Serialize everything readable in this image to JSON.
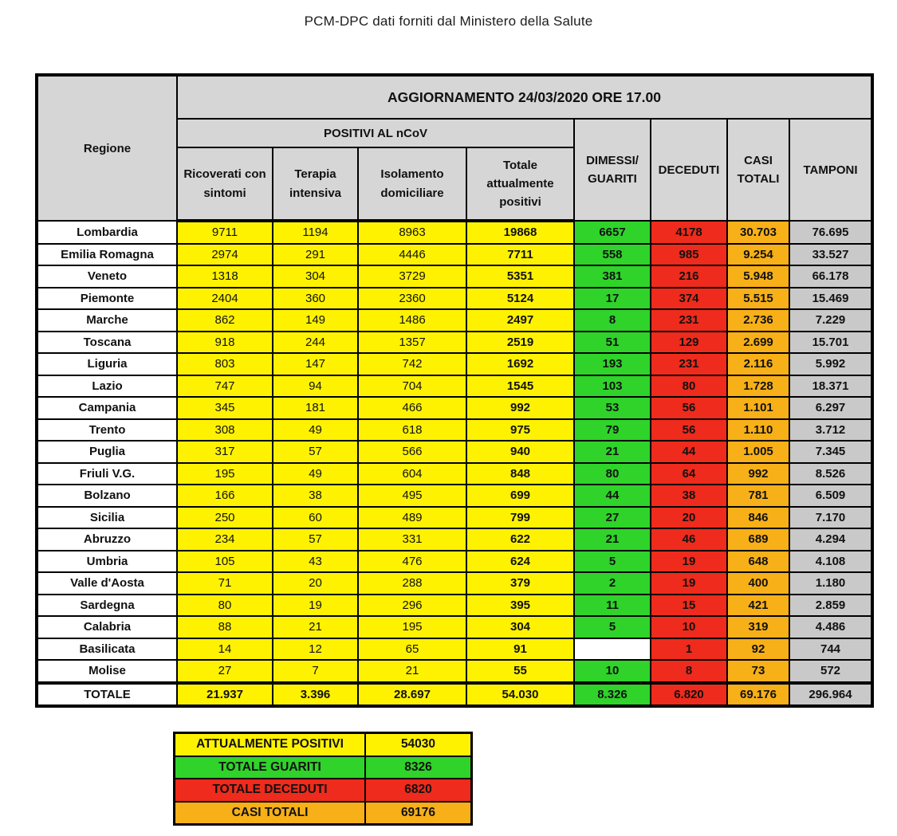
{
  "page_title": "PCM-DPC dati forniti dal Ministero della Salute",
  "colors": {
    "yellow": "#FEF201",
    "green": "#2FD32A",
    "red": "#EE2B1C",
    "orange_data": "#F8B018",
    "orange_header": "#FFB60D",
    "header_gray": "#D6D6D6",
    "tamponi_gray": "#C9C9C9",
    "border": "#000000"
  },
  "chart_data": {
    "type": "table",
    "title": "AGGIORNAMENTO 24/03/2020 ORE 17.00",
    "group_header": "POSITIVI AL nCoV",
    "columns": [
      "Regione",
      "Ricoverati con sintomi",
      "Terapia intensiva",
      "Isolamento domiciliare",
      "Totale attualmente positivi",
      "DIMESSI/ GUARITI",
      "DECEDUTI",
      "CASI TOTALI",
      "TAMPONI"
    ],
    "rows": [
      {
        "region": "Lombardia",
        "values": [
          "9711",
          "1194",
          "8963",
          "19868",
          "6657",
          "4178",
          "30.703",
          "76.695"
        ]
      },
      {
        "region": "Emilia Romagna",
        "values": [
          "2974",
          "291",
          "4446",
          "7711",
          "558",
          "985",
          "9.254",
          "33.527"
        ]
      },
      {
        "region": "Veneto",
        "values": [
          "1318",
          "304",
          "3729",
          "5351",
          "381",
          "216",
          "5.948",
          "66.178"
        ]
      },
      {
        "region": "Piemonte",
        "values": [
          "2404",
          "360",
          "2360",
          "5124",
          "17",
          "374",
          "5.515",
          "15.469"
        ]
      },
      {
        "region": "Marche",
        "values": [
          "862",
          "149",
          "1486",
          "2497",
          "8",
          "231",
          "2.736",
          "7.229"
        ]
      },
      {
        "region": "Toscana",
        "values": [
          "918",
          "244",
          "1357",
          "2519",
          "51",
          "129",
          "2.699",
          "15.701"
        ]
      },
      {
        "region": "Liguria",
        "values": [
          "803",
          "147",
          "742",
          "1692",
          "193",
          "231",
          "2.116",
          "5.992"
        ]
      },
      {
        "region": "Lazio",
        "values": [
          "747",
          "94",
          "704",
          "1545",
          "103",
          "80",
          "1.728",
          "18.371"
        ]
      },
      {
        "region": "Campania",
        "values": [
          "345",
          "181",
          "466",
          "992",
          "53",
          "56",
          "1.101",
          "6.297"
        ]
      },
      {
        "region": "Trento",
        "values": [
          "308",
          "49",
          "618",
          "975",
          "79",
          "56",
          "1.110",
          "3.712"
        ]
      },
      {
        "region": "Puglia",
        "values": [
          "317",
          "57",
          "566",
          "940",
          "21",
          "44",
          "1.005",
          "7.345"
        ]
      },
      {
        "region": "Friuli V.G.",
        "values": [
          "195",
          "49",
          "604",
          "848",
          "80",
          "64",
          "992",
          "8.526"
        ]
      },
      {
        "region": "Bolzano",
        "values": [
          "166",
          "38",
          "495",
          "699",
          "44",
          "38",
          "781",
          "6.509"
        ]
      },
      {
        "region": "Sicilia",
        "values": [
          "250",
          "60",
          "489",
          "799",
          "27",
          "20",
          "846",
          "7.170"
        ]
      },
      {
        "region": "Abruzzo",
        "values": [
          "234",
          "57",
          "331",
          "622",
          "21",
          "46",
          "689",
          "4.294"
        ]
      },
      {
        "region": "Umbria",
        "values": [
          "105",
          "43",
          "476",
          "624",
          "5",
          "19",
          "648",
          "4.108"
        ]
      },
      {
        "region": "Valle d'Aosta",
        "values": [
          "71",
          "20",
          "288",
          "379",
          "2",
          "19",
          "400",
          "1.180"
        ]
      },
      {
        "region": "Sardegna",
        "values": [
          "80",
          "19",
          "296",
          "395",
          "11",
          "15",
          "421",
          "2.859"
        ]
      },
      {
        "region": "Calabria",
        "values": [
          "88",
          "21",
          "195",
          "304",
          "5",
          "10",
          "319",
          "4.486"
        ]
      },
      {
        "region": "Basilicata",
        "values": [
          "14",
          "12",
          "65",
          "91",
          "",
          "1",
          "92",
          "744"
        ]
      },
      {
        "region": "Molise",
        "values": [
          "27",
          "7",
          "21",
          "55",
          "10",
          "8",
          "73",
          "572"
        ]
      }
    ],
    "total": {
      "region": "TOTALE",
      "values": [
        "21.937",
        "3.396",
        "28.697",
        "54.030",
        "8.326",
        "6.820",
        "69.176",
        "296.964"
      ]
    }
  },
  "legend": {
    "rows": [
      {
        "label": "ATTUALMENTE POSITIVI",
        "value": "54030",
        "color": "yellow"
      },
      {
        "label": "TOTALE GUARITI",
        "value": "8326",
        "color": "green"
      },
      {
        "label": "TOTALE DECEDUTI",
        "value": "6820",
        "color": "red"
      },
      {
        "label": "CASI TOTALI",
        "value": "69176",
        "color": "orange"
      }
    ]
  }
}
